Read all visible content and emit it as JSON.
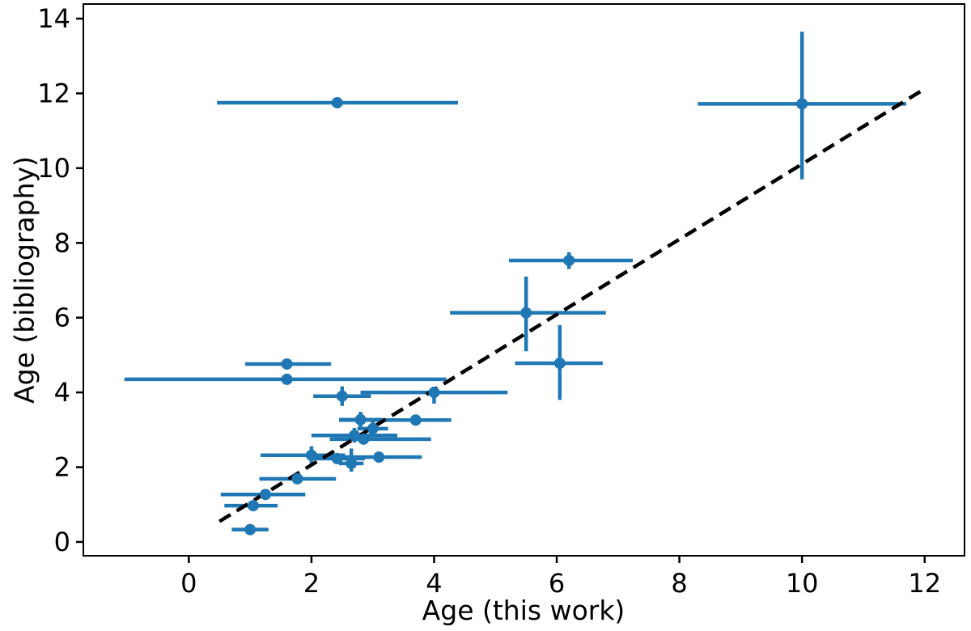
{
  "chart_data": {
    "type": "scatter",
    "title": "",
    "xlabel": "Age (this work)",
    "ylabel": "Age (bibliography)",
    "xlim": [
      -1.72,
      12.65
    ],
    "ylim": [
      -0.37,
      14.39
    ],
    "xticks": [
      0,
      2,
      4,
      6,
      8,
      10,
      12
    ],
    "yticks": [
      0,
      2,
      4,
      6,
      8,
      10,
      12,
      14
    ],
    "grid": false,
    "legend": "none",
    "marker_color": "#1f77b4",
    "identity_line": {
      "x1": 0.5,
      "y1": 0.55,
      "x2": 11.94,
      "y2": 12.06,
      "color": "#000000",
      "style": "dashed"
    },
    "points": [
      {
        "x": 1.0,
        "y": 0.33,
        "xerr": [
          0.7,
          1.3
        ],
        "yerr": null
      },
      {
        "x": 1.05,
        "y": 0.97,
        "xerr": [
          0.58,
          1.45
        ],
        "yerr": null
      },
      {
        "x": 1.25,
        "y": 1.27,
        "xerr": [
          0.52,
          1.9
        ],
        "yerr": null
      },
      {
        "x": 1.77,
        "y": 1.69,
        "xerr": [
          1.15,
          2.4
        ],
        "yerr": null
      },
      {
        "x": 2.0,
        "y": 2.32,
        "xerr": [
          1.17,
          2.55
        ],
        "yerr": [
          2.06,
          2.56
        ]
      },
      {
        "x": 2.42,
        "y": 2.23,
        "xerr": [
          1.97,
          2.87
        ],
        "yerr": null
      },
      {
        "x": 2.65,
        "y": 2.1,
        "xerr": [
          2.45,
          2.85
        ],
        "yerr": [
          1.88,
          2.5
        ]
      },
      {
        "x": 3.1,
        "y": 2.27,
        "xerr": [
          2.45,
          3.8
        ],
        "yerr": null
      },
      {
        "x": 2.7,
        "y": 2.85,
        "xerr": [
          2.0,
          3.4
        ],
        "yerr": [
          2.66,
          3.05
        ]
      },
      {
        "x": 2.85,
        "y": 2.75,
        "xerr": [
          2.3,
          3.95
        ],
        "yerr": null
      },
      {
        "x": 2.8,
        "y": 3.27,
        "xerr": [
          2.45,
          3.17
        ],
        "yerr": [
          3.05,
          3.48
        ]
      },
      {
        "x": 3.0,
        "y": 3.03,
        "xerr": [
          2.75,
          3.25
        ],
        "yerr": [
          2.8,
          3.26
        ]
      },
      {
        "x": 3.7,
        "y": 3.26,
        "xerr": [
          2.45,
          4.28
        ],
        "yerr": null
      },
      {
        "x": 2.5,
        "y": 3.9,
        "xerr": [
          2.03,
          2.97
        ],
        "yerr": [
          3.64,
          4.16
        ]
      },
      {
        "x": 4.0,
        "y": 4.0,
        "xerr": [
          2.8,
          5.2
        ],
        "yerr": [
          3.7,
          4.15
        ]
      },
      {
        "x": 1.6,
        "y": 4.76,
        "xerr": [
          0.92,
          2.32
        ],
        "yerr": null
      },
      {
        "x": 1.6,
        "y": 4.35,
        "xerr": [
          -1.05,
          4.2
        ],
        "yerr": null
      },
      {
        "x": 2.42,
        "y": 11.75,
        "xerr": [
          0.46,
          4.39
        ],
        "yerr": null
      },
      {
        "x": 6.2,
        "y": 7.53,
        "xerr": [
          5.22,
          7.24
        ],
        "yerr": [
          7.3,
          7.75
        ]
      },
      {
        "x": 5.5,
        "y": 6.13,
        "xerr": [
          4.26,
          6.8
        ],
        "yerr": [
          5.1,
          7.1
        ]
      },
      {
        "x": 6.05,
        "y": 4.78,
        "xerr": [
          5.32,
          6.75
        ],
        "yerr": [
          3.8,
          5.8
        ]
      },
      {
        "x": 10.0,
        "y": 11.72,
        "xerr": [
          8.3,
          11.7
        ],
        "yerr": [
          9.7,
          13.65
        ]
      }
    ]
  }
}
